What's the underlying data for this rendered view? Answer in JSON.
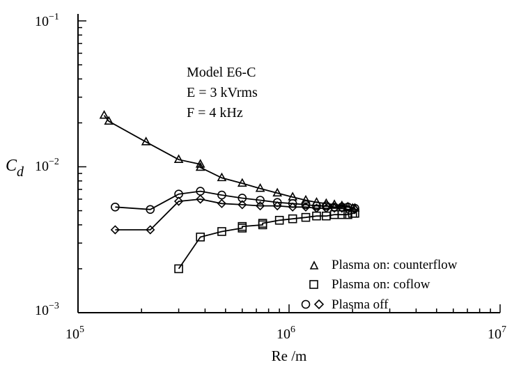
{
  "chart_data": {
    "type": "line",
    "title": "",
    "xlabel": "Re /m",
    "ylabel": {
      "base": "C",
      "sub": "d"
    },
    "x_scale": "log",
    "y_scale": "log",
    "xlim": [
      100000,
      10000000
    ],
    "ylim": [
      0.001,
      0.1
    ],
    "x_ticks": [
      {
        "value": 100000,
        "base": "10",
        "exp": "5"
      },
      {
        "value": 1000000,
        "base": "10",
        "exp": "6"
      },
      {
        "value": 10000000,
        "base": "10",
        "exp": "7"
      }
    ],
    "y_ticks": [
      {
        "value": 0.001,
        "base": "10",
        "exp": "−3"
      },
      {
        "value": 0.01,
        "base": "10",
        "exp": "−2"
      },
      {
        "value": 0.1,
        "base": "10",
        "exp": "−1"
      }
    ],
    "grid": false,
    "annotation_lines": [
      "Model E6-C",
      "E = 3 kVrms",
      "F = 4 kHz"
    ],
    "legend_position": "bottom-right",
    "legend": [
      {
        "label": "Plasma on: counterflow",
        "markers": [
          "triangle"
        ]
      },
      {
        "label": "Plasma on: coflow",
        "markers": [
          "square"
        ]
      },
      {
        "label": "Plasma off",
        "markers": [
          "circle",
          "diamond"
        ]
      }
    ],
    "series": [
      {
        "marker": "triangle",
        "x": [
          133000,
          140000,
          210000,
          300000,
          380000,
          380000,
          480000,
          600000,
          730000,
          880000,
          1040000,
          1200000,
          1350000,
          1500000,
          1640000,
          1780000,
          1900000,
          2000000,
          2050000
        ],
        "y": [
          0.0225,
          0.0205,
          0.0148,
          0.0112,
          0.0104,
          0.0099,
          0.0084,
          0.0077,
          0.0071,
          0.0066,
          0.0062,
          0.0059,
          0.0057,
          0.0056,
          0.0055,
          0.0054,
          0.0053,
          0.0052,
          0.0052
        ]
      },
      {
        "marker": "square",
        "x": [
          300000,
          380000,
          480000,
          600000,
          600000,
          750000,
          750000,
          900000,
          1040000,
          1200000,
          1350000,
          1500000,
          1640000,
          1780000,
          1900000,
          2000000,
          2050000
        ],
        "y": [
          0.002,
          0.0033,
          0.0036,
          0.0038,
          0.0039,
          0.004,
          0.0041,
          0.0043,
          0.0044,
          0.0045,
          0.0046,
          0.0046,
          0.0047,
          0.0047,
          0.0047,
          0.0048,
          0.0048
        ]
      },
      {
        "marker": "circle",
        "x": [
          150000,
          220000,
          300000,
          380000,
          480000,
          600000,
          730000,
          880000,
          1040000,
          1200000,
          1350000,
          1500000,
          1640000,
          1780000,
          1900000,
          2050000
        ],
        "y": [
          0.0053,
          0.0051,
          0.0065,
          0.0068,
          0.0064,
          0.0061,
          0.0059,
          0.0057,
          0.0056,
          0.0055,
          0.0054,
          0.0054,
          0.0053,
          0.0053,
          0.0053,
          0.0052
        ]
      },
      {
        "marker": "diamond",
        "x": [
          150000,
          220000,
          300000,
          380000,
          480000,
          600000,
          730000,
          880000,
          1040000,
          1200000,
          1350000,
          1500000,
          1640000,
          1780000,
          1900000,
          2050000
        ],
        "y": [
          0.0037,
          0.0037,
          0.0058,
          0.006,
          0.0056,
          0.0055,
          0.0054,
          0.0054,
          0.0053,
          0.0053,
          0.0052,
          0.0052,
          0.0052,
          0.0052,
          0.0051,
          0.0051
        ]
      }
    ]
  }
}
